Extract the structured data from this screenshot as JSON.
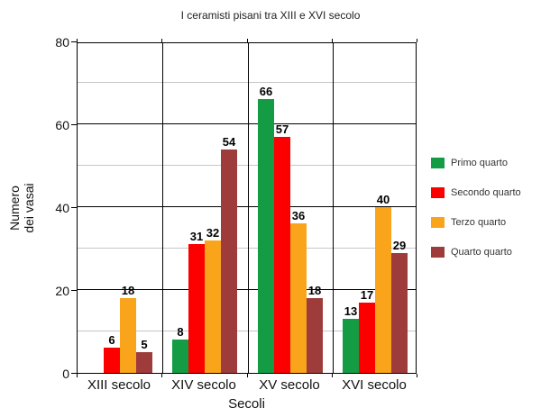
{
  "chart_data": {
    "type": "bar",
    "title": "I ceramisti pisani tra XIII e XVI secolo",
    "xlabel": "Secoli",
    "ylabel": "Numero dei vasai",
    "categories": [
      "XIII secolo",
      "XIV secolo",
      "XV secolo",
      "XVI secolo"
    ],
    "series": [
      {
        "name": "Primo quarto",
        "color": "#149c44",
        "values": [
          0,
          8,
          66,
          13
        ]
      },
      {
        "name": "Secondo quarto",
        "color": "#fc0000",
        "values": [
          6,
          31,
          57,
          17
        ]
      },
      {
        "name": "Terzo quarto",
        "color": "#f9a41b",
        "values": [
          18,
          32,
          36,
          40
        ]
      },
      {
        "name": "Quarto quarto",
        "color": "#9e3b3b",
        "values": [
          5,
          54,
          18,
          29
        ]
      }
    ],
    "ylim": [
      0,
      80
    ],
    "yticks": [
      0,
      20,
      40,
      60,
      80
    ],
    "minor_gridlines": [
      10,
      30,
      50,
      70
    ],
    "legend_position": "right",
    "show_value_labels": true,
    "grid": "on"
  }
}
